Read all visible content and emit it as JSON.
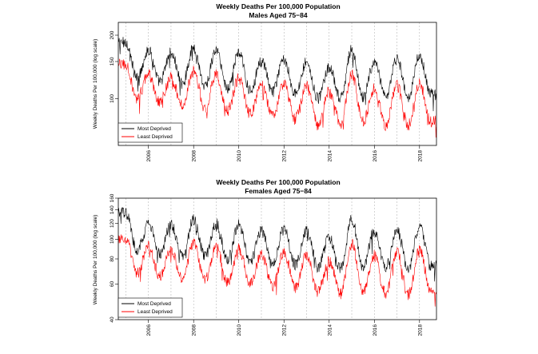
{
  "charts": [
    {
      "title": "Weekly Deaths Per 100,000 Population",
      "subtitle": "Males Aged 75−84",
      "ylabel": "Weekly Deaths Per 100,000 (log scale)",
      "yticks": [
        "100",
        "150",
        "200"
      ],
      "xticks": [
        "2006",
        "2008",
        "2010",
        "2012",
        "2014",
        "2016",
        "2018"
      ],
      "legend": [
        {
          "label": "Most Deprived",
          "color": "#000000"
        },
        {
          "label": "Least Deprived",
          "color": "#ff0000"
        }
      ]
    },
    {
      "title": "Weekly Deaths Per 100,000 Population",
      "subtitle": "Females Aged 75−84",
      "ylabel": "Weekly Deaths Per 100,000 (log scale)",
      "yticks": [
        "40",
        "60",
        "80",
        "100",
        "120",
        "140",
        "160"
      ],
      "xticks": [
        "2006",
        "2008",
        "2010",
        "2012",
        "2014",
        "2016",
        "2018"
      ],
      "legend": [
        {
          "label": "Most Deprived",
          "color": "#000000"
        },
        {
          "label": "Least Deprived",
          "color": "#ff0000"
        }
      ]
    }
  ],
  "chart_data": [
    {
      "type": "line",
      "title": "Weekly Deaths Per 100,000 Population",
      "subtitle": "Males Aged 75−84",
      "xlabel": "",
      "ylabel": "Weekly Deaths Per 100,000 (log scale)",
      "log_y": true,
      "xlim": [
        "2004-09",
        "2018-10"
      ],
      "ylim": [
        60,
        230
      ],
      "grid": "vertical dashed lines at each new year",
      "legend_position": "bottom-left",
      "colors": {
        "Most Deprived": "#000000",
        "Least Deprived": "#ff0000"
      },
      "series": [
        {
          "name": "Most Deprived",
          "x": [
            "2005-01",
            "2005-07",
            "2006-01",
            "2006-07",
            "2007-01",
            "2007-07",
            "2008-01",
            "2008-07",
            "2009-01",
            "2009-07",
            "2010-01",
            "2010-07",
            "2011-01",
            "2011-07",
            "2012-01",
            "2012-07",
            "2013-01",
            "2013-07",
            "2014-01",
            "2014-07",
            "2015-01",
            "2015-07",
            "2016-01",
            "2016-07",
            "2017-01",
            "2017-07",
            "2018-01",
            "2018-07"
          ],
          "values": [
            185,
            125,
            170,
            120,
            165,
            118,
            175,
            115,
            170,
            112,
            165,
            110,
            150,
            108,
            155,
            105,
            150,
            100,
            140,
            100,
            170,
            102,
            150,
            100,
            155,
            100,
            160,
            105
          ]
        },
        {
          "name": "Least Deprived",
          "x": [
            "2005-01",
            "2005-07",
            "2006-01",
            "2006-07",
            "2007-01",
            "2007-07",
            "2008-01",
            "2008-07",
            "2009-01",
            "2009-07",
            "2010-01",
            "2010-07",
            "2011-01",
            "2011-07",
            "2012-01",
            "2012-07",
            "2013-01",
            "2013-07",
            "2014-01",
            "2014-07",
            "2015-01",
            "2015-07",
            "2016-01",
            "2016-07",
            "2017-01",
            "2017-07",
            "2018-01",
            "2018-07"
          ],
          "values": [
            145,
            100,
            130,
            96,
            125,
            93,
            135,
            90,
            130,
            88,
            125,
            85,
            115,
            83,
            118,
            80,
            115,
            76,
            108,
            76,
            130,
            78,
            112,
            75,
            115,
            75,
            118,
            78
          ]
        }
      ]
    },
    {
      "type": "line",
      "title": "Weekly Deaths Per 100,000 Population",
      "subtitle": "Females Aged 75−84",
      "xlabel": "",
      "ylabel": "Weekly Deaths Per 100,000 (log scale)",
      "log_y": true,
      "xlim": [
        "2004-09",
        "2018-10"
      ],
      "ylim": [
        40,
        160
      ],
      "grid": "vertical dashed lines at each new year",
      "legend_position": "bottom-left",
      "colors": {
        "Most Deprived": "#000000",
        "Least Deprived": "#ff0000"
      },
      "series": [
        {
          "name": "Most Deprived",
          "x": [
            "2005-01",
            "2005-07",
            "2006-01",
            "2006-07",
            "2007-01",
            "2007-07",
            "2008-01",
            "2008-07",
            "2009-01",
            "2009-07",
            "2010-01",
            "2010-07",
            "2011-01",
            "2011-07",
            "2012-01",
            "2012-07",
            "2013-01",
            "2013-07",
            "2014-01",
            "2014-07",
            "2015-01",
            "2015-07",
            "2016-01",
            "2016-07",
            "2017-01",
            "2017-07",
            "2018-01",
            "2018-07"
          ],
          "values": [
            135,
            88,
            120,
            85,
            118,
            83,
            125,
            82,
            120,
            80,
            118,
            78,
            110,
            77,
            112,
            75,
            110,
            73,
            102,
            72,
            125,
            73,
            110,
            72,
            112,
            71,
            115,
            74
          ]
        },
        {
          "name": "Least Deprived",
          "x": [
            "2005-01",
            "2005-07",
            "2006-01",
            "2006-07",
            "2007-01",
            "2007-07",
            "2008-01",
            "2008-07",
            "2009-01",
            "2009-07",
            "2010-01",
            "2010-07",
            "2011-01",
            "2011-07",
            "2012-01",
            "2012-07",
            "2013-01",
            "2013-07",
            "2014-01",
            "2014-07",
            "2015-01",
            "2015-07",
            "2016-01",
            "2016-07",
            "2017-01",
            "2017-07",
            "2018-01",
            "2018-07"
          ],
          "values": [
            100,
            68,
            92,
            66,
            90,
            64,
            96,
            63,
            92,
            61,
            90,
            60,
            84,
            59,
            86,
            57,
            84,
            55,
            78,
            54,
            95,
            55,
            84,
            54,
            86,
            53,
            88,
            56
          ]
        }
      ]
    }
  ]
}
